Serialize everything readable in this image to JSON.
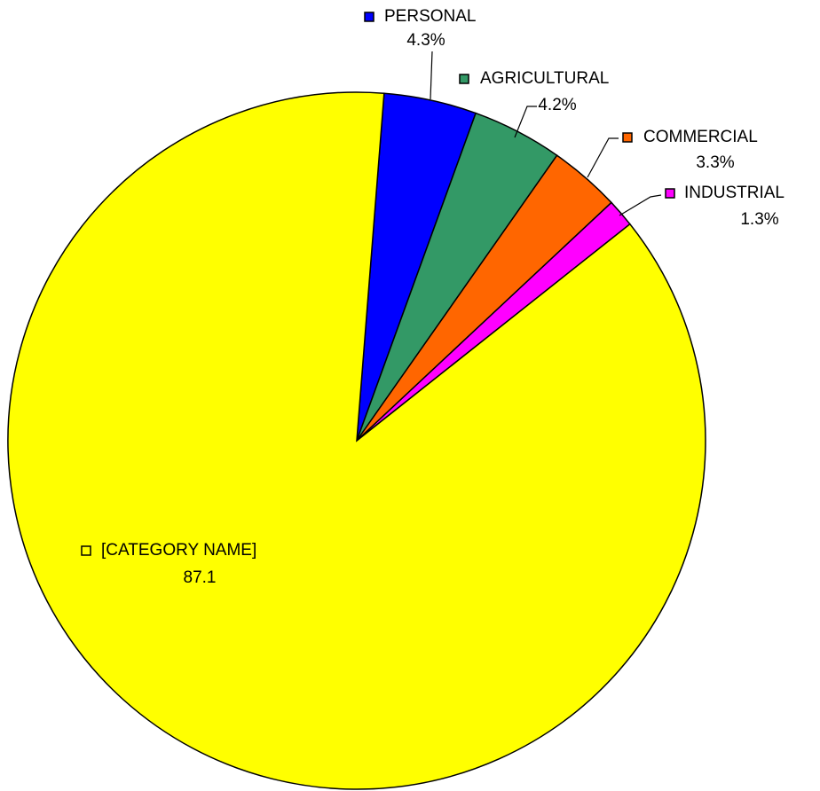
{
  "chart_data": {
    "type": "pie",
    "categories": [
      "PERSONAL",
      "AGRICULTURAL",
      "COMMERCIAL",
      "INDUSTRIAL",
      "[CATEGORY NAME]"
    ],
    "values": [
      4.3,
      4.2,
      3.3,
      1.3,
      87.1
    ],
    "value_labels": [
      "4.3%",
      "4.2%",
      "3.3%",
      "1.3%",
      "87.1"
    ],
    "colors": [
      "#0000ff",
      "#339966",
      "#ff6600",
      "#ff00ff",
      "#ffff00"
    ]
  }
}
